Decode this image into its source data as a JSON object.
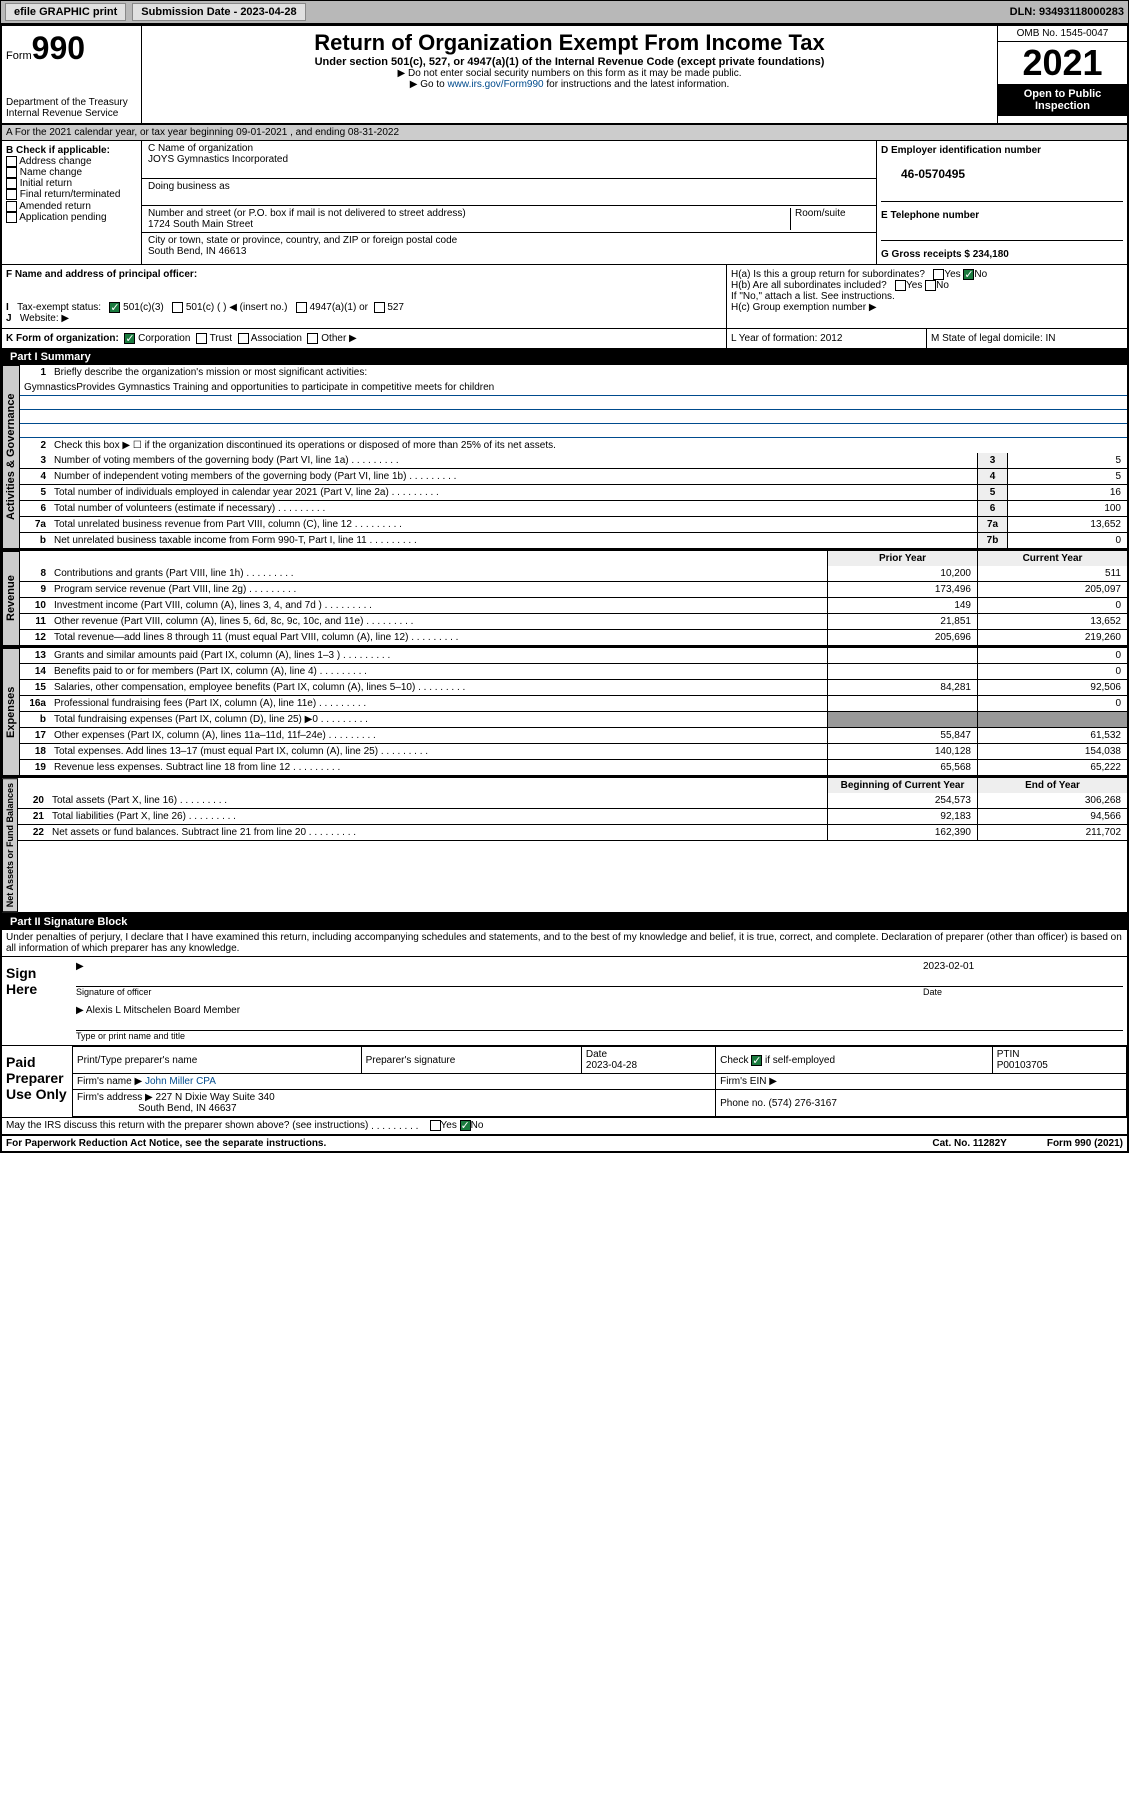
{
  "topbar": {
    "efile": "efile GRAPHIC print",
    "subdate_label": "Submission Date - 2023-04-28",
    "dln": "DLN: 93493118000283"
  },
  "header": {
    "form_word": "Form",
    "form_num": "990",
    "dept": "Department of the Treasury",
    "irs": "Internal Revenue Service",
    "title": "Return of Organization Exempt From Income Tax",
    "subtitle": "Under section 501(c), 527, or 4947(a)(1) of the Internal Revenue Code (except private foundations)",
    "note1": "▶ Do not enter social security numbers on this form as it may be made public.",
    "note2_pre": "▶ Go to ",
    "note2_link": "www.irs.gov/Form990",
    "note2_post": " for instructions and the latest information.",
    "omb": "OMB No. 1545-0047",
    "year": "2021",
    "inspect": "Open to Public Inspection"
  },
  "row_a": "A For the 2021 calendar year, or tax year beginning 09-01-2021    , and ending 08-31-2022",
  "section_b": {
    "label": "B Check if applicable:",
    "opts": [
      "Address change",
      "Name change",
      "Initial return",
      "Final return/terminated",
      "Amended return",
      "Application pending"
    ]
  },
  "section_c": {
    "name_label": "C Name of organization",
    "name": "JOYS Gymnastics Incorporated",
    "dba_label": "Doing business as",
    "addr_label": "Number and street (or P.O. box if mail is not delivered to street address)",
    "room_label": "Room/suite",
    "addr": "1724 South Main Street",
    "city_label": "City or town, state or province, country, and ZIP or foreign postal code",
    "city": "South Bend, IN  46613"
  },
  "section_d": {
    "label": "D Employer identification number",
    "val": "46-0570495"
  },
  "section_e": {
    "label": "E Telephone number"
  },
  "section_g": {
    "label": "G Gross receipts $ 234,180"
  },
  "section_f": "F  Name and address of principal officer:",
  "section_h": {
    "ha": "H(a)  Is this a group return for subordinates?",
    "hb": "H(b)  Are all subordinates included?",
    "hb_note": "If \"No,\" attach a list. See instructions.",
    "hc": "H(c)  Group exemption number ▶"
  },
  "section_i": {
    "label": "Tax-exempt status:",
    "o1": "501(c)(3)",
    "o2": "501(c) (   ) ◀ (insert no.)",
    "o3": "4947(a)(1) or",
    "o4": "527"
  },
  "section_j": "Website: ▶",
  "section_k": "K Form of organization:",
  "k_opts": [
    "Corporation",
    "Trust",
    "Association",
    "Other ▶"
  ],
  "section_l": "L Year of formation: 2012",
  "section_m": "M State of legal domicile: IN",
  "part1_title": "Part I      Summary",
  "mission_q": "Briefly describe the organization's mission or most significant activities:",
  "mission": "GymnasticsProvides Gymnastics Training and opportunities to participate in competitive meets for children",
  "line2": "Check this box ▶ ☐  if the organization discontinued its operations or disposed of more than 25% of its net assets.",
  "gov_lines": [
    {
      "n": "3",
      "d": "Number of voting members of the governing body (Part VI, line 1a)",
      "box": "3",
      "v": "5"
    },
    {
      "n": "4",
      "d": "Number of independent voting members of the governing body (Part VI, line 1b)",
      "box": "4",
      "v": "5"
    },
    {
      "n": "5",
      "d": "Total number of individuals employed in calendar year 2021 (Part V, line 2a)",
      "box": "5",
      "v": "16"
    },
    {
      "n": "6",
      "d": "Total number of volunteers (estimate if necessary)",
      "box": "6",
      "v": "100"
    },
    {
      "n": "7a",
      "d": "Total unrelated business revenue from Part VIII, column (C), line 12",
      "box": "7a",
      "v": "13,652"
    },
    {
      "n": "b",
      "d": "Net unrelated business taxable income from Form 990-T, Part I, line 11",
      "box": "7b",
      "v": "0"
    }
  ],
  "colhdr": {
    "prior": "Prior Year",
    "curr": "Current Year"
  },
  "rev_lines": [
    {
      "n": "8",
      "d": "Contributions and grants (Part VIII, line 1h)",
      "p": "10,200",
      "c": "511"
    },
    {
      "n": "9",
      "d": "Program service revenue (Part VIII, line 2g)",
      "p": "173,496",
      "c": "205,097"
    },
    {
      "n": "10",
      "d": "Investment income (Part VIII, column (A), lines 3, 4, and 7d )",
      "p": "149",
      "c": "0"
    },
    {
      "n": "11",
      "d": "Other revenue (Part VIII, column (A), lines 5, 6d, 8c, 9c, 10c, and 11e)",
      "p": "21,851",
      "c": "13,652"
    },
    {
      "n": "12",
      "d": "Total revenue—add lines 8 through 11 (must equal Part VIII, column (A), line 12)",
      "p": "205,696",
      "c": "219,260"
    }
  ],
  "exp_lines": [
    {
      "n": "13",
      "d": "Grants and similar amounts paid (Part IX, column (A), lines 1–3 )",
      "p": "",
      "c": "0"
    },
    {
      "n": "14",
      "d": "Benefits paid to or for members (Part IX, column (A), line 4)",
      "p": "",
      "c": "0"
    },
    {
      "n": "15",
      "d": "Salaries, other compensation, employee benefits (Part IX, column (A), lines 5–10)",
      "p": "84,281",
      "c": "92,506"
    },
    {
      "n": "16a",
      "d": "Professional fundraising fees (Part IX, column (A), line 11e)",
      "p": "",
      "c": "0"
    },
    {
      "n": "b",
      "d": "Total fundraising expenses (Part IX, column (D), line 25) ▶0",
      "p": "GRAY",
      "c": "GRAY"
    },
    {
      "n": "17",
      "d": "Other expenses (Part IX, column (A), lines 11a–11d, 11f–24e)",
      "p": "55,847",
      "c": "61,532"
    },
    {
      "n": "18",
      "d": "Total expenses. Add lines 13–17 (must equal Part IX, column (A), line 25)",
      "p": "140,128",
      "c": "154,038"
    },
    {
      "n": "19",
      "d": "Revenue less expenses. Subtract line 18 from line 12",
      "p": "65,568",
      "c": "65,222"
    }
  ],
  "colhdr2": {
    "prior": "Beginning of Current Year",
    "curr": "End of Year"
  },
  "net_lines": [
    {
      "n": "20",
      "d": "Total assets (Part X, line 16)",
      "p": "254,573",
      "c": "306,268"
    },
    {
      "n": "21",
      "d": "Total liabilities (Part X, line 26)",
      "p": "92,183",
      "c": "94,566"
    },
    {
      "n": "22",
      "d": "Net assets or fund balances. Subtract line 21 from line 20",
      "p": "162,390",
      "c": "211,702"
    }
  ],
  "vtabs": {
    "gov": "Activities & Governance",
    "rev": "Revenue",
    "exp": "Expenses",
    "net": "Net Assets or Fund Balances"
  },
  "part2_title": "Part II      Signature Block",
  "part2_decl": "Under penalties of perjury, I declare that I have examined this return, including accompanying schedules and statements, and to the best of my knowledge and belief, it is true, correct, and complete. Declaration of preparer (other than officer) is based on all information of which preparer has any knowledge.",
  "sign": {
    "here": "Sign Here",
    "sig_label": "Signature of officer",
    "date": "2023-02-01",
    "date_label": "Date",
    "name": "Alexis L Mitschelen  Board Member",
    "name_label": "Type or print name and title"
  },
  "prep": {
    "title": "Paid Preparer Use Only",
    "h1": "Print/Type preparer's name",
    "h2": "Preparer's signature",
    "h3": "Date",
    "h4": "Check ☑ if self-employed",
    "h5": "PTIN",
    "date": "2023-04-28",
    "ptin": "P00103705",
    "firm_label": "Firm's name    ▶",
    "firm": "John Miller CPA",
    "ein_label": "Firm's EIN ▶",
    "addr_label": "Firm's address ▶",
    "addr1": "227 N Dixie Way Suite 340",
    "addr2": "South Bend, IN  46637",
    "phone_label": "Phone no. (574) 276-3167"
  },
  "may_irs": "May the IRS discuss this return with the preparer shown above? (see instructions)",
  "footer": {
    "l": "For Paperwork Reduction Act Notice, see the separate instructions.",
    "m": "Cat. No. 11282Y",
    "r": "Form 990 (2021)"
  }
}
